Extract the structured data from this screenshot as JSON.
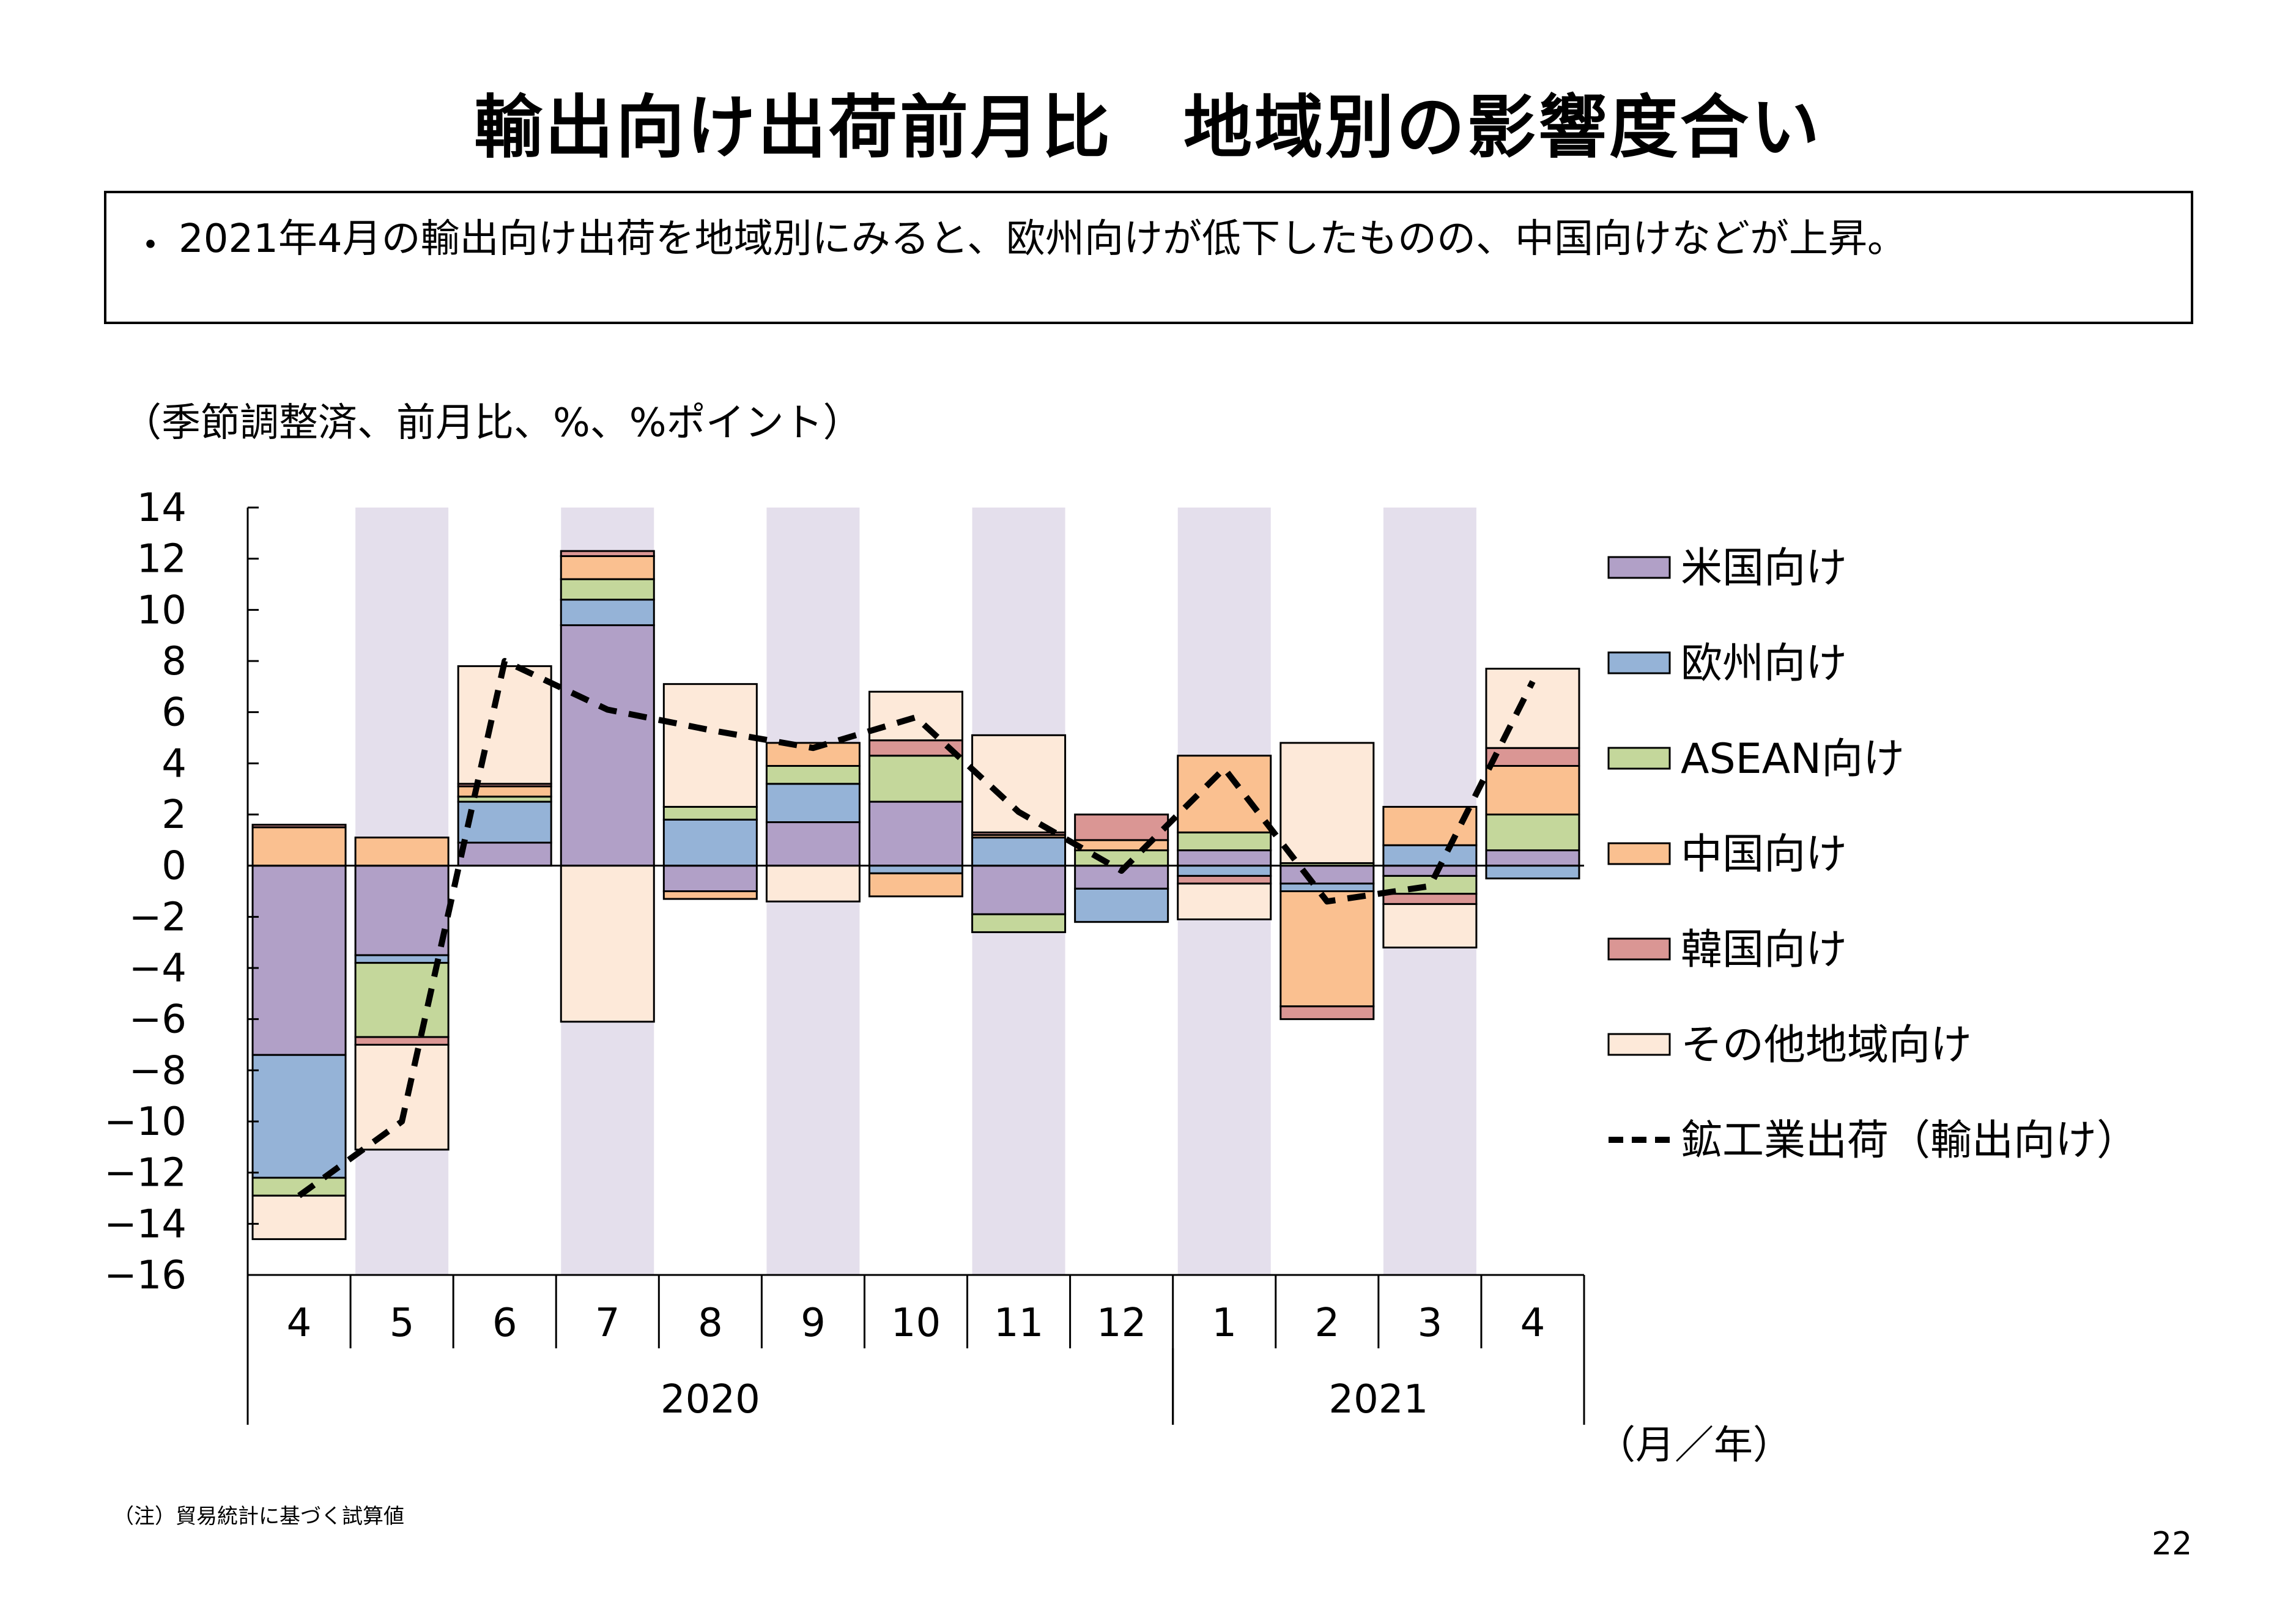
{
  "title": "輸出向け出荷前月比　地域別の影響度合い",
  "summary": {
    "bullet": "・",
    "text": "2021年4月の輸出向け出荷を地域別にみると、欧州向けが低下したものの、中国向けなどが上昇。"
  },
  "unit_label": "（季節調整済、前月比、%、%ポイント）",
  "note": "（注）貿易統計に基づく試算値",
  "page_number": "22",
  "chart_data": {
    "type": "bar",
    "stacked": true,
    "categories": [
      "4",
      "5",
      "6",
      "7",
      "8",
      "9",
      "10",
      "11",
      "12",
      "1",
      "2",
      "3",
      "4"
    ],
    "year_groups": [
      {
        "label": "2020",
        "start": 0,
        "count": 9
      },
      {
        "label": "2021",
        "start": 9,
        "count": 4
      }
    ],
    "x_unit_label": "（月／年）",
    "ylim": [
      -16,
      14
    ],
    "yticks": [
      14,
      12,
      10,
      8,
      6,
      4,
      2,
      0,
      -2,
      -4,
      -6,
      -8,
      -10,
      -12,
      -14,
      -16
    ],
    "shaded_bands": [
      1,
      3,
      5,
      7,
      9,
      11
    ],
    "colors": {
      "米国向け": "#b1a0c7",
      "欧州向け": "#95b3d7",
      "ASEAN向け": "#c4d79b",
      "中国向け": "#fac090",
      "韓国向け": "#da9694",
      "その他地域向け": "#fde9d9",
      "band": "#e4dfec",
      "line": "#000000"
    },
    "series": [
      {
        "name": "米国向け",
        "values": [
          -7.4,
          -3.5,
          0.9,
          9.4,
          -1.0,
          1.7,
          2.5,
          -1.9,
          -0.9,
          0.6,
          -0.7,
          -0.4,
          0.6
        ]
      },
      {
        "name": "欧州向け",
        "values": [
          -4.8,
          -0.3,
          1.6,
          1.0,
          1.8,
          1.5,
          -0.3,
          1.1,
          -1.3,
          -0.4,
          -0.3,
          0.8,
          -0.5
        ]
      },
      {
        "name": "ASEAN向け",
        "values": [
          -0.7,
          -2.9,
          0.2,
          0.8,
          0.5,
          0.7,
          1.8,
          -0.7,
          0.6,
          0.7,
          0.1,
          -0.7,
          1.4
        ]
      },
      {
        "name": "中国向け",
        "values": [
          1.5,
          1.1,
          0.4,
          0.9,
          -0.3,
          0.9,
          -0.9,
          0.1,
          0.4,
          3.0,
          -4.5,
          1.5,
          1.9
        ]
      },
      {
        "name": "韓国向け",
        "values": [
          0.1,
          -0.3,
          0.1,
          0.2,
          0.0,
          0.0,
          0.6,
          0.1,
          1.0,
          -0.3,
          -0.5,
          -0.4,
          0.7
        ]
      },
      {
        "name": "その他地域向け",
        "values": [
          -1.7,
          -4.1,
          4.6,
          -6.1,
          4.8,
          -1.4,
          1.9,
          3.8,
          0.0,
          -1.4,
          4.7,
          -1.7,
          3.1
        ]
      }
    ],
    "line": {
      "name": "鉱工業出荷（輸出向け）",
      "values": [
        -12.9,
        -10.0,
        8.0,
        6.1,
        5.3,
        4.6,
        5.8,
        2.1,
        -0.2,
        3.8,
        -1.4,
        -0.8,
        7.2
      ]
    }
  }
}
